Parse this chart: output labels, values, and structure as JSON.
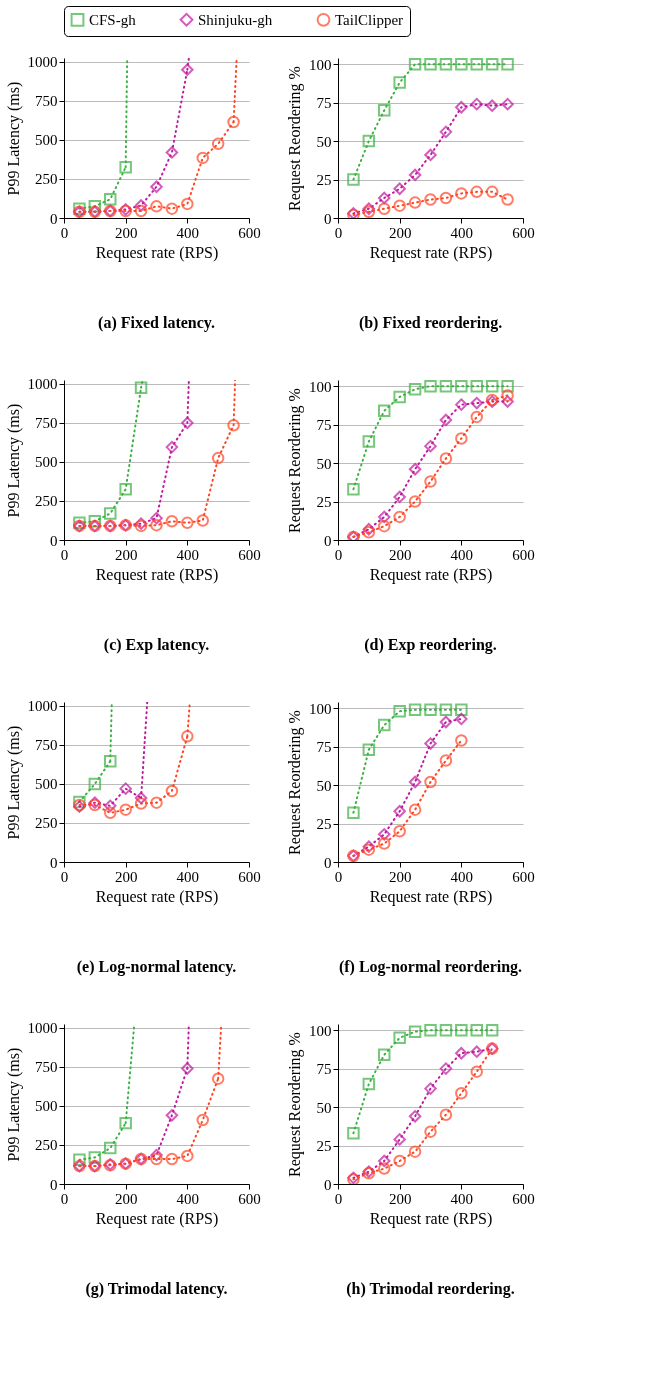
{
  "chart_data": [
    {
      "type": "line",
      "title": "(a) Fixed latency.",
      "xlabel": "Request rate (RPS)",
      "ylabel": "P99 Latency (ms)",
      "xlim": [
        0,
        600
      ],
      "xticks": [
        0,
        200,
        400,
        600
      ],
      "ylim": [
        0,
        1025
      ],
      "yticks": [
        0,
        250,
        500,
        750,
        1000
      ],
      "grid": "y",
      "legend": "top",
      "series": [
        {
          "name": "CFS-gh",
          "color": "#3cb043",
          "marker": "square",
          "line_style": "dotted",
          "x": [
            50,
            100,
            150,
            200
          ],
          "values": [
            60,
            75,
            120,
            325
          ]
        },
        {
          "name": "Shinjuku-gh",
          "color": "#c0189e",
          "marker": "diamond",
          "line_style": "dotted",
          "x": [
            50,
            100,
            150,
            200,
            250,
            300,
            350,
            400
          ],
          "values": [
            40,
            40,
            45,
            55,
            80,
            200,
            420,
            950
          ]
        },
        {
          "name": "TailClipper",
          "color": "#ff4422",
          "marker": "circle",
          "line_style": "dotted",
          "x": [
            50,
            100,
            150,
            200,
            250,
            300,
            350,
            400,
            450,
            500,
            550
          ],
          "values": [
            40,
            40,
            45,
            45,
            45,
            75,
            60,
            90,
            385,
            475,
            615
          ]
        },
        {
          "type": "line",
          "color": "#3cb043",
          "marker": "none",
          "line_style": "dotted",
          "x": [
            200,
            205
          ],
          "values": [
            325,
            1025
          ]
        },
        {
          "type": "line",
          "color": "#c0189e",
          "marker": "none",
          "line_style": "dotted",
          "x": [
            400,
            405
          ],
          "values": [
            950,
            1025
          ]
        },
        {
          "type": "line",
          "color": "#ff4422",
          "marker": "none",
          "line_style": "dotted",
          "x": [
            550,
            560
          ],
          "values": [
            615,
            1025
          ]
        }
      ]
    },
    {
      "type": "line",
      "title": "(b) Fixed reordering.",
      "xlabel": "Request rate (RPS)",
      "ylabel": "Request Reordering %",
      "xlim": [
        0,
        600
      ],
      "xticks": [
        0,
        200,
        400,
        600
      ],
      "ylim": [
        0,
        104
      ],
      "yticks": [
        0,
        25,
        50,
        75,
        100
      ],
      "grid": "y",
      "series": [
        {
          "name": "CFS-gh",
          "color": "#3cb043",
          "marker": "square",
          "line_style": "dotted",
          "x": [
            50,
            100,
            150,
            200,
            250,
            300,
            350,
            400,
            450,
            500,
            550
          ],
          "values": [
            25,
            50,
            70,
            88,
            100,
            100,
            100,
            100,
            100,
            100,
            100
          ]
        },
        {
          "name": "Shinjuku-gh",
          "color": "#c0189e",
          "marker": "diamond",
          "line_style": "dotted",
          "x": [
            50,
            100,
            150,
            200,
            250,
            300,
            350,
            400,
            450,
            500,
            550
          ],
          "values": [
            3,
            6,
            13,
            19,
            28,
            41,
            56,
            72,
            74,
            73,
            74
          ]
        },
        {
          "name": "TailClipper",
          "color": "#ff4422",
          "marker": "circle",
          "line_style": "dotted",
          "x": [
            50,
            100,
            150,
            200,
            250,
            300,
            350,
            400,
            450,
            500,
            550
          ],
          "values": [
            2,
            4,
            6,
            8,
            10,
            12,
            13,
            16,
            17,
            17,
            12
          ]
        }
      ]
    },
    {
      "type": "line",
      "title": "(c) Exp latency.",
      "xlabel": "Request rate (RPS)",
      "ylabel": "P99 Latency (ms)",
      "xlim": [
        0,
        600
      ],
      "xticks": [
        0,
        200,
        400,
        600
      ],
      "ylim": [
        0,
        1025
      ],
      "yticks": [
        0,
        250,
        500,
        750,
        1000
      ],
      "grid": "y",
      "series": [
        {
          "name": "CFS-gh",
          "color": "#3cb043",
          "marker": "square",
          "line_style": "dotted",
          "x": [
            50,
            100,
            150,
            200,
            250
          ],
          "values": [
            110,
            120,
            170,
            325,
            975
          ]
        },
        {
          "name": "Shinjuku-gh",
          "color": "#c0189e",
          "marker": "diamond",
          "line_style": "dotted",
          "x": [
            50,
            100,
            150,
            200,
            250,
            300,
            350,
            400
          ],
          "values": [
            90,
            90,
            90,
            95,
            105,
            140,
            595,
            750
          ]
        },
        {
          "name": "TailClipper",
          "color": "#ff4422",
          "marker": "circle",
          "line_style": "dotted",
          "x": [
            50,
            100,
            150,
            200,
            250,
            300,
            350,
            400,
            450,
            500,
            550
          ],
          "values": [
            90,
            90,
            90,
            95,
            90,
            95,
            120,
            110,
            125,
            525,
            735
          ]
        },
        {
          "type": "line",
          "color": "#3cb043",
          "marker": "none",
          "line_style": "dotted",
          "x": [
            250,
            255
          ],
          "values": [
            975,
            1025
          ]
        },
        {
          "type": "line",
          "color": "#c0189e",
          "marker": "none",
          "line_style": "dotted",
          "x": [
            400,
            405
          ],
          "values": [
            750,
            1025
          ]
        },
        {
          "type": "line",
          "color": "#ff4422",
          "marker": "none",
          "line_style": "dotted",
          "x": [
            550,
            555
          ],
          "values": [
            735,
            1025
          ]
        }
      ]
    },
    {
      "type": "line",
      "title": "(d) Exp reordering.",
      "xlabel": "Request rate (RPS)",
      "ylabel": "Request Reordering %",
      "xlim": [
        0,
        600
      ],
      "xticks": [
        0,
        200,
        400,
        600
      ],
      "ylim": [
        0,
        104
      ],
      "yticks": [
        0,
        25,
        50,
        75,
        100
      ],
      "grid": "y",
      "series": [
        {
          "name": "CFS-gh",
          "color": "#3cb043",
          "marker": "square",
          "line_style": "dotted",
          "x": [
            50,
            100,
            150,
            200,
            250,
            300,
            350,
            400,
            450,
            500,
            550
          ],
          "values": [
            33,
            64,
            84,
            93,
            98,
            100,
            100,
            100,
            100,
            100,
            100
          ]
        },
        {
          "name": "Shinjuku-gh",
          "color": "#c0189e",
          "marker": "diamond",
          "line_style": "dotted",
          "x": [
            50,
            100,
            150,
            200,
            250,
            300,
            350,
            400,
            450,
            500,
            550
          ],
          "values": [
            2,
            7,
            15,
            28,
            46,
            61,
            78,
            88,
            89,
            90,
            90
          ]
        },
        {
          "name": "TailClipper",
          "color": "#ff4422",
          "marker": "circle",
          "line_style": "dotted",
          "x": [
            50,
            100,
            150,
            200,
            250,
            300,
            350,
            400,
            450,
            500,
            550
          ],
          "values": [
            2,
            5,
            9,
            15,
            25,
            38,
            53,
            66,
            80,
            91,
            94
          ]
        }
      ]
    },
    {
      "type": "line",
      "title": "(e) Log-normal latency.",
      "xlabel": "Request rate (RPS)",
      "ylabel": "P99 Latency (ms)",
      "xlim": [
        0,
        600
      ],
      "xticks": [
        0,
        200,
        400,
        600
      ],
      "ylim": [
        0,
        1025
      ],
      "yticks": [
        0,
        250,
        500,
        750,
        1000
      ],
      "grid": "y",
      "series": [
        {
          "name": "CFS-gh",
          "color": "#3cb043",
          "marker": "square",
          "line_style": "dotted",
          "x": [
            50,
            100,
            150
          ],
          "values": [
            385,
            500,
            645
          ]
        },
        {
          "name": "Shinjuku-gh",
          "color": "#c0189e",
          "marker": "diamond",
          "line_style": "dotted",
          "x": [
            50,
            100,
            150,
            200,
            250
          ],
          "values": [
            355,
            380,
            360,
            470,
            410
          ]
        },
        {
          "name": "TailClipper",
          "color": "#ff4422",
          "marker": "circle",
          "line_style": "dotted",
          "x": [
            50,
            100,
            150,
            200,
            250,
            300,
            350,
            400
          ],
          "values": [
            365,
            365,
            315,
            335,
            375,
            380,
            455,
            805
          ]
        },
        {
          "type": "line",
          "color": "#3cb043",
          "marker": "none",
          "line_style": "dotted",
          "x": [
            150,
            155
          ],
          "values": [
            645,
            1025
          ]
        },
        {
          "type": "line",
          "color": "#c0189e",
          "marker": "none",
          "line_style": "dotted",
          "x": [
            250,
            270
          ],
          "values": [
            410,
            1025
          ]
        },
        {
          "type": "line",
          "color": "#ff4422",
          "marker": "none",
          "line_style": "dotted",
          "x": [
            400,
            408
          ],
          "values": [
            805,
            1025
          ]
        }
      ]
    },
    {
      "type": "line",
      "title": "(f) Log-normal reordering.",
      "xlabel": "Request rate (RPS)",
      "ylabel": "Request Reordering %",
      "xlim": [
        0,
        600
      ],
      "xticks": [
        0,
        200,
        400,
        600
      ],
      "ylim": [
        0,
        104
      ],
      "yticks": [
        0,
        25,
        50,
        75,
        100
      ],
      "grid": "y",
      "series": [
        {
          "name": "CFS-gh",
          "color": "#3cb043",
          "marker": "square",
          "line_style": "dotted",
          "x": [
            50,
            100,
            150,
            200,
            250,
            300,
            350,
            400
          ],
          "values": [
            32,
            73,
            89,
            98,
            99,
            99,
            99,
            99
          ]
        },
        {
          "name": "Shinjuku-gh",
          "color": "#c0189e",
          "marker": "diamond",
          "line_style": "dotted",
          "x": [
            50,
            100,
            150,
            200,
            250,
            300,
            350,
            400
          ],
          "values": [
            4,
            10,
            18,
            33,
            52,
            77,
            91,
            93
          ]
        },
        {
          "name": "TailClipper",
          "color": "#ff4422",
          "marker": "circle",
          "line_style": "dotted",
          "x": [
            50,
            100,
            150,
            200,
            250,
            300,
            350,
            400
          ],
          "values": [
            4,
            8,
            12,
            20,
            34,
            52,
            66,
            79
          ]
        }
      ]
    },
    {
      "type": "line",
      "title": "(g) Trimodal latency.",
      "xlabel": "Request rate (RPS)",
      "ylabel": "P99 Latency (ms)",
      "xlim": [
        0,
        600
      ],
      "xticks": [
        0,
        200,
        400,
        600
      ],
      "ylim": [
        0,
        1025
      ],
      "yticks": [
        0,
        250,
        500,
        750,
        1000
      ],
      "grid": "y",
      "series": [
        {
          "name": "CFS-gh",
          "color": "#3cb043",
          "marker": "square",
          "line_style": "dotted",
          "x": [
            50,
            100,
            150,
            200
          ],
          "values": [
            155,
            170,
            230,
            390
          ]
        },
        {
          "name": "Shinjuku-gh",
          "color": "#c0189e",
          "marker": "diamond",
          "line_style": "dotted",
          "x": [
            50,
            100,
            150,
            200,
            250,
            300,
            350,
            400
          ],
          "values": [
            115,
            115,
            125,
            130,
            160,
            185,
            440,
            740
          ]
        },
        {
          "name": "TailClipper",
          "color": "#ff4422",
          "marker": "circle",
          "line_style": "dotted",
          "x": [
            50,
            100,
            150,
            200,
            250,
            300,
            350,
            400,
            450,
            500
          ],
          "values": [
            115,
            115,
            120,
            130,
            160,
            160,
            160,
            180,
            410,
            675
          ]
        },
        {
          "type": "line",
          "color": "#3cb043",
          "marker": "none",
          "line_style": "dotted",
          "x": [
            200,
            228
          ],
          "values": [
            390,
            1025
          ]
        },
        {
          "type": "line",
          "color": "#c0189e",
          "marker": "none",
          "line_style": "dotted",
          "x": [
            400,
            405
          ],
          "values": [
            740,
            1025
          ]
        },
        {
          "type": "line",
          "color": "#ff4422",
          "marker": "none",
          "line_style": "dotted",
          "x": [
            500,
            510
          ],
          "values": [
            675,
            1025
          ]
        }
      ]
    },
    {
      "type": "line",
      "title": "(h) Trimodal reordering.",
      "xlabel": "Request rate (RPS)",
      "ylabel": "Request Reordering %",
      "xlim": [
        0,
        600
      ],
      "xticks": [
        0,
        200,
        400,
        600
      ],
      "ylim": [
        0,
        104
      ],
      "yticks": [
        0,
        25,
        50,
        75,
        100
      ],
      "grid": "y",
      "series": [
        {
          "name": "CFS-gh",
          "color": "#3cb043",
          "marker": "square",
          "line_style": "dotted",
          "x": [
            50,
            100,
            150,
            200,
            250,
            300,
            350,
            400,
            450,
            500
          ],
          "values": [
            33,
            65,
            84,
            95,
            99,
            100,
            100,
            100,
            100,
            100
          ]
        },
        {
          "name": "Shinjuku-gh",
          "color": "#c0189e",
          "marker": "diamond",
          "line_style": "dotted",
          "x": [
            50,
            100,
            150,
            200,
            250,
            300,
            350,
            400,
            450,
            500
          ],
          "values": [
            4,
            8,
            15,
            29,
            44,
            62,
            75,
            85,
            86,
            88
          ]
        },
        {
          "name": "TailClipper",
          "color": "#ff4422",
          "marker": "circle",
          "line_style": "dotted",
          "x": [
            50,
            100,
            150,
            200,
            250,
            300,
            350,
            400,
            450,
            500
          ],
          "values": [
            3,
            7,
            10,
            15,
            21,
            34,
            45,
            59,
            73,
            88
          ]
        }
      ]
    }
  ]
}
